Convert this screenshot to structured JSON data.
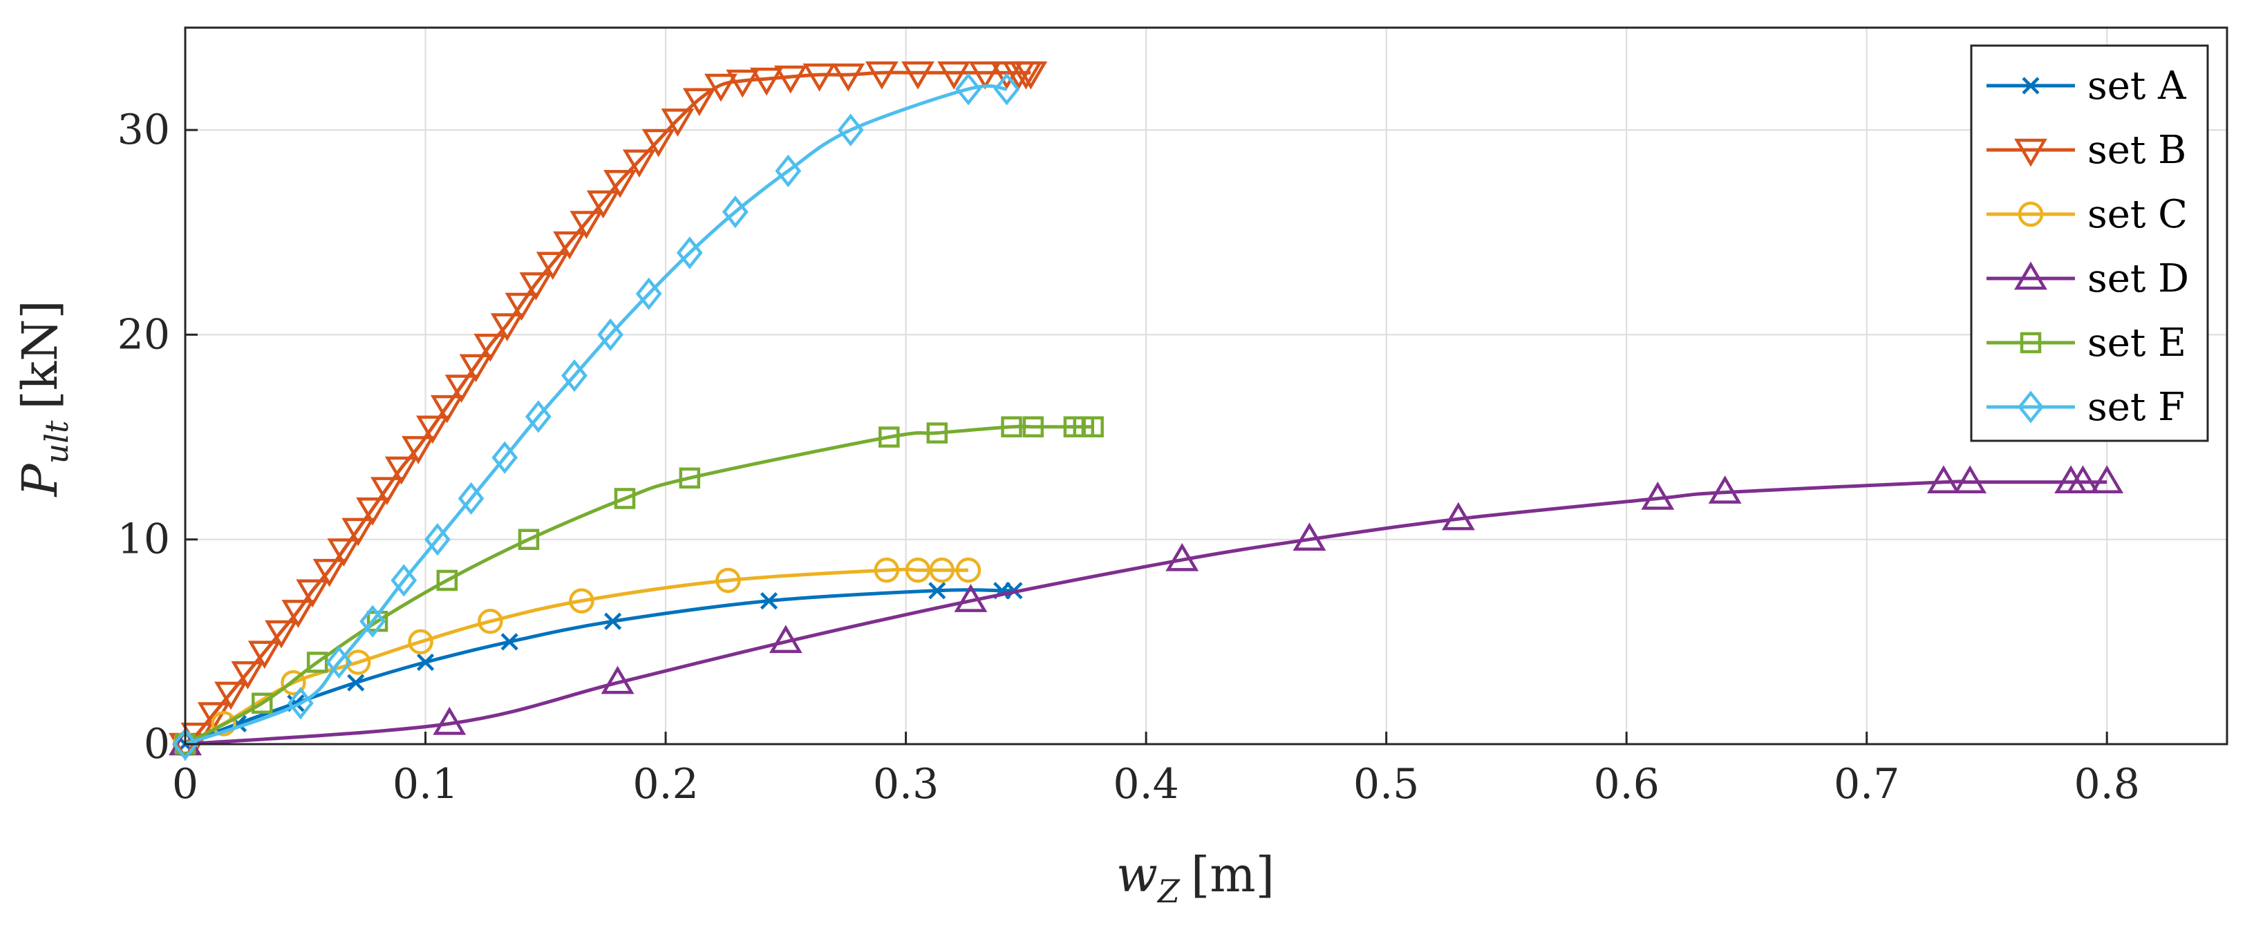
{
  "chart_data": {
    "type": "line",
    "xlabel": {
      "main": "w",
      "sub": "Z",
      "unit": "[m]"
    },
    "ylabel": {
      "main": "P",
      "sub": "ult",
      "unit": "[kN]"
    },
    "xlim": [
      0,
      0.85
    ],
    "ylim": [
      0,
      35
    ],
    "grid": true,
    "legend_position": "top-right",
    "xticks": [
      0,
      0.1,
      0.2,
      0.3,
      0.4,
      0.5,
      0.6,
      0.7,
      0.8
    ],
    "xtick_labels": [
      "0",
      "0.1",
      "0.2",
      "0.3",
      "0.4",
      "0.5",
      "0.6",
      "0.7",
      "0.8"
    ],
    "yticks": [
      0,
      10,
      20,
      30
    ],
    "ytick_labels": [
      "0",
      "10",
      "20",
      "30"
    ],
    "series": [
      {
        "name": "set A",
        "color": "#0072BD",
        "marker": "x",
        "x": [
          0,
          0.022,
          0.046,
          0.071,
          0.1,
          0.135,
          0.178,
          0.243,
          0.313,
          0.34,
          0.345
        ],
        "y": [
          0,
          1,
          2,
          3,
          4,
          5,
          6,
          7,
          7.5,
          7.5,
          7.5
        ]
      },
      {
        "name": "set B",
        "color": "#D95319",
        "marker": "triangle-down",
        "x": [
          0,
          0.005,
          0.012,
          0.019,
          0.026,
          0.033,
          0.04,
          0.047,
          0.053,
          0.06,
          0.066,
          0.072,
          0.078,
          0.084,
          0.09,
          0.097,
          0.103,
          0.109,
          0.115,
          0.121,
          0.127,
          0.134,
          0.14,
          0.146,
          0.153,
          0.16,
          0.167,
          0.174,
          0.181,
          0.189,
          0.197,
          0.205,
          0.214,
          0.223,
          0.232,
          0.242,
          0.252,
          0.264,
          0.276,
          0.29,
          0.305,
          0.32,
          0.333,
          0.342,
          0.347,
          0.35,
          0.352
        ],
        "y": [
          0,
          0.5,
          1.5,
          2.5,
          3.5,
          4.5,
          5.5,
          6.5,
          7.5,
          8.5,
          9.5,
          10.5,
          11.5,
          12.5,
          13.5,
          14.5,
          15.5,
          16.5,
          17.5,
          18.5,
          19.5,
          20.5,
          21.5,
          22.5,
          23.5,
          24.5,
          25.5,
          26.5,
          27.5,
          28.5,
          29.5,
          30.5,
          31.5,
          32.2,
          32.4,
          32.5,
          32.6,
          32.7,
          32.7,
          32.8,
          32.8,
          32.8,
          32.8,
          32.8,
          32.8,
          32.8,
          32.8
        ],
        "markers_index_from_drawn": true
      },
      {
        "name": "set C",
        "color": "#EDB120",
        "marker": "circle",
        "x": [
          0,
          0.016,
          0.045,
          0.072,
          0.098,
          0.127,
          0.165,
          0.226,
          0.292,
          0.305,
          0.315,
          0.326
        ],
        "y": [
          0,
          1,
          3,
          4,
          5,
          6,
          7,
          8,
          8.5,
          8.5,
          8.5,
          8.5
        ]
      },
      {
        "name": "set D",
        "color": "#7E2F8E",
        "marker": "triangle-up",
        "x": [
          0,
          0.11,
          0.18,
          0.25,
          0.327,
          0.415,
          0.468,
          0.53,
          0.613,
          0.641,
          0.732,
          0.743,
          0.785,
          0.79,
          0.8
        ],
        "y": [
          0,
          1,
          3,
          5,
          7,
          9,
          10,
          11,
          12,
          12.3,
          12.8,
          12.8,
          12.8,
          12.8,
          12.8
        ]
      },
      {
        "name": "set E",
        "color": "#77AC30",
        "marker": "square",
        "x": [
          0,
          0.032,
          0.055,
          0.08,
          0.109,
          0.143,
          0.183,
          0.21,
          0.293,
          0.313,
          0.344,
          0.353,
          0.37,
          0.374,
          0.378
        ],
        "y": [
          0,
          2,
          4,
          6,
          8,
          10,
          12,
          13,
          15,
          15.2,
          15.5,
          15.5,
          15.5,
          15.5,
          15.5
        ]
      },
      {
        "name": "set F",
        "color": "#4DBEEE",
        "marker": "diamond",
        "x": [
          0,
          0.048,
          0.064,
          0.078,
          0.091,
          0.105,
          0.119,
          0.133,
          0.147,
          0.162,
          0.177,
          0.193,
          0.21,
          0.229,
          0.251,
          0.277,
          0.326,
          0.342
        ],
        "y": [
          0,
          2,
          4,
          6,
          8,
          10,
          12,
          14,
          16,
          18,
          20,
          22,
          24,
          26,
          28,
          30,
          32,
          32
        ]
      }
    ]
  }
}
